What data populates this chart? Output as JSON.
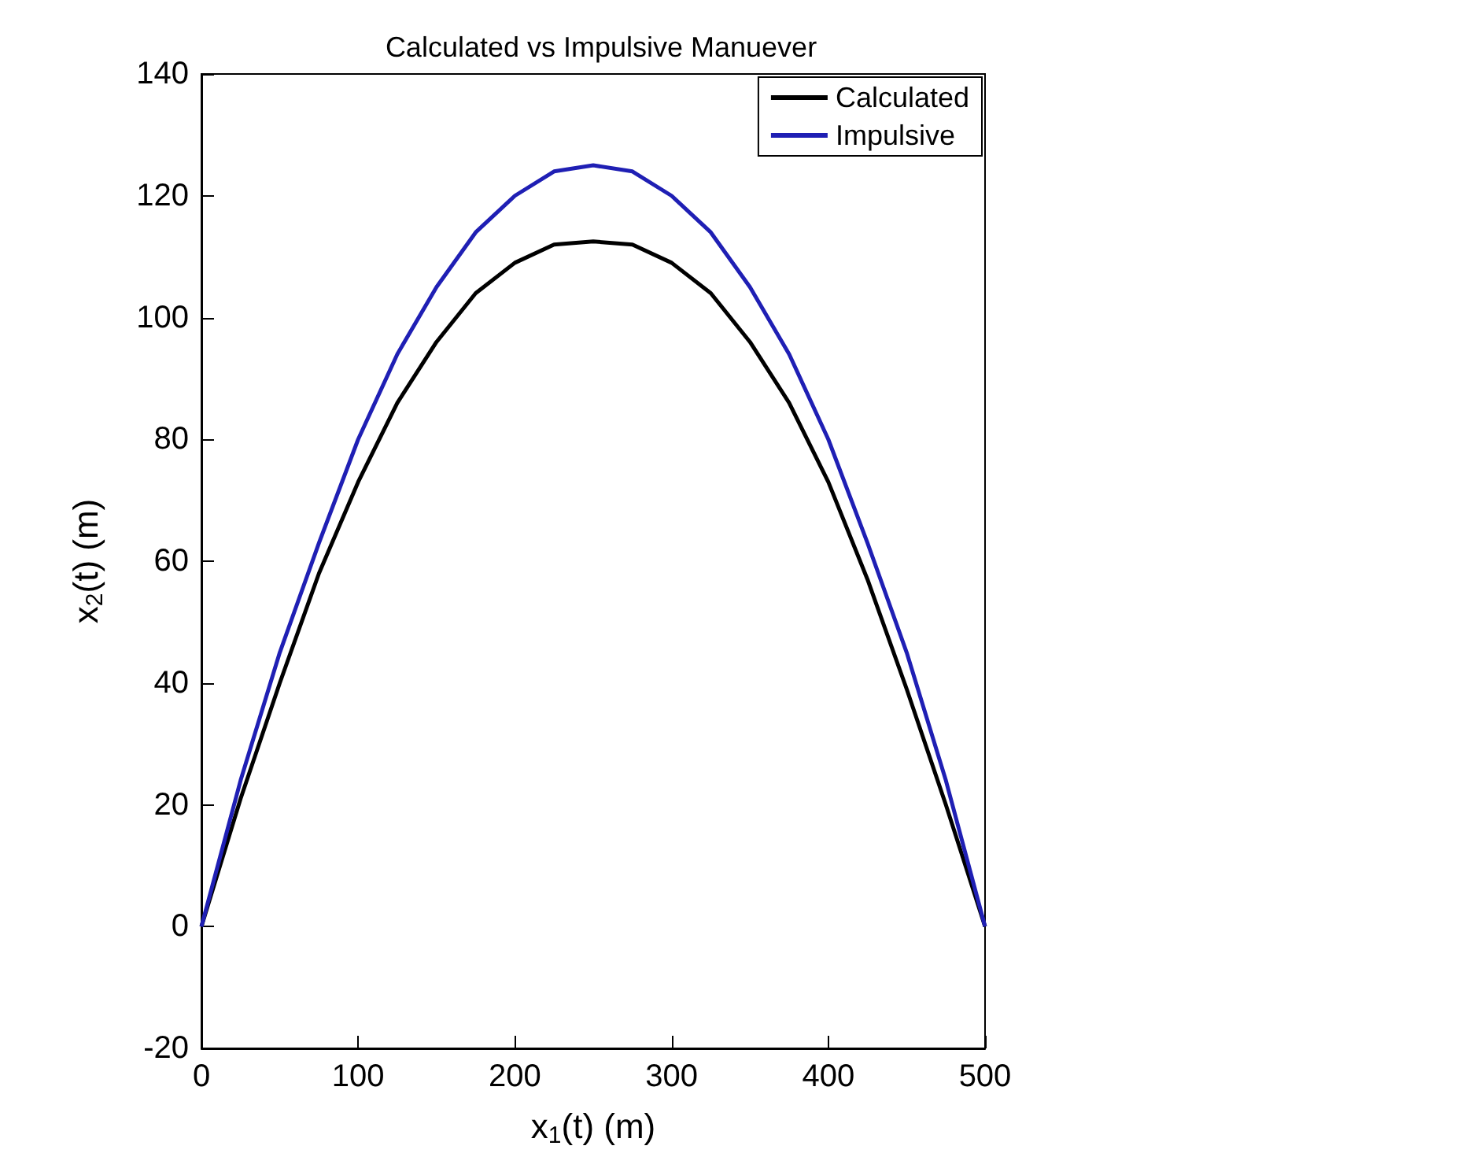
{
  "chart_data": {
    "type": "line",
    "title": "Calculated vs Impulsive Manuever",
    "xlabel": "x$_{1}$(t) (m)",
    "ylabel": "x$_{2}$(t) (m)",
    "x": [
      0,
      25,
      50,
      75,
      100,
      125,
      150,
      175,
      200,
      225,
      250,
      275,
      300,
      325,
      350,
      375,
      400,
      425,
      450,
      475,
      500
    ],
    "series": [
      {
        "name": "Calculated",
        "color": "#000000",
        "values": [
          0,
          21,
          40,
          58,
          73,
          86,
          96,
          104,
          109,
          112,
          112.5,
          112,
          109,
          104,
          96,
          86,
          73,
          57,
          39,
          20,
          0
        ]
      },
      {
        "name": "Impulsive",
        "color": "#1f1fb4",
        "values": [
          0,
          24,
          45,
          63,
          80,
          94,
          105,
          114,
          120,
          124,
          125,
          124,
          120,
          114,
          105,
          94,
          80,
          63,
          45,
          24,
          0
        ]
      }
    ],
    "xlim": [
      0,
      500
    ],
    "xticks": [
      0,
      100,
      200,
      300,
      400,
      500
    ],
    "ylim": [
      -20,
      140
    ],
    "yticks": [
      -20,
      0,
      20,
      40,
      60,
      80,
      100,
      120,
      140
    ],
    "legend": "top right",
    "grid": false
  }
}
